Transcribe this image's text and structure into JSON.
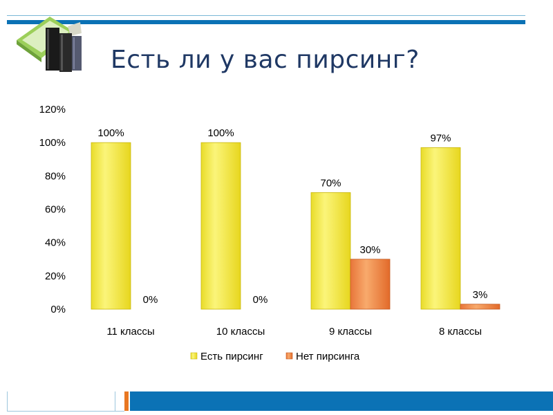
{
  "slide": {
    "title": "Есть ли у вас пирсинг?"
  },
  "chart_data": {
    "type": "bar",
    "categories": [
      "11 классы",
      "10 классы",
      "9 классы",
      "8 классы"
    ],
    "series": [
      {
        "name": "Есть пирсинг",
        "values": [
          100,
          100,
          70,
          97
        ],
        "labels": [
          "100%",
          "100%",
          "70%",
          "97%"
        ],
        "color": "#f0e84a"
      },
      {
        "name": "Нет пирсинга",
        "values": [
          0,
          0,
          30,
          3
        ],
        "labels": [
          "0%",
          "0%",
          "30%",
          "3%"
        ],
        "color": "#f08c4a"
      }
    ],
    "yticks": [
      "0%",
      "20%",
      "40%",
      "60%",
      "80%",
      "100%",
      "120%"
    ],
    "ylim": [
      0,
      120
    ],
    "legend_position": "bottom",
    "grid": false
  }
}
